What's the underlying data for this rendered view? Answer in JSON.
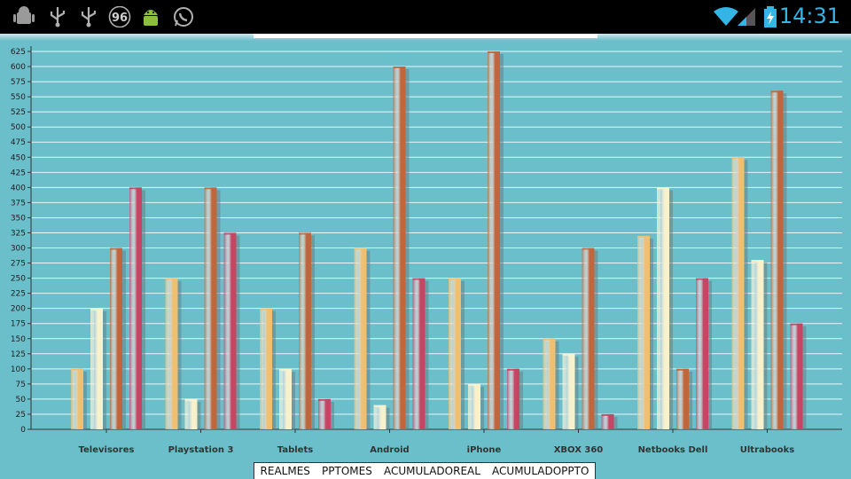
{
  "status_bar": {
    "clock": "14:31",
    "badge": "96",
    "icons": [
      "android-debug-icon",
      "usb-icon",
      "usb-icon",
      "badge-96-icon",
      "android-robot-icon",
      "whatsapp-icon",
      "wifi-icon",
      "signal-icon",
      "battery-charging-icon"
    ]
  },
  "chart_data": {
    "type": "bar",
    "categories": [
      "Televisores",
      "Playstation 3",
      "Tablets",
      "Android",
      "iPhone",
      "XBOX 360",
      "Netbooks Dell",
      "Ultrabooks"
    ],
    "series": [
      {
        "name": "REALMES",
        "color": "#f0c070",
        "values": [
          100,
          250,
          200,
          300,
          250,
          150,
          320,
          450
        ]
      },
      {
        "name": "PPTOMES",
        "color": "#f8f2cc",
        "values": [
          200,
          50,
          100,
          40,
          75,
          125,
          400,
          280
        ]
      },
      {
        "name": "ACUMULADOREAL",
        "color": "#c0663c",
        "values": [
          300,
          400,
          325,
          600,
          625,
          300,
          100,
          560
        ]
      },
      {
        "name": "ACUMULADOPPTO",
        "color": "#c44664",
        "values": [
          400,
          325,
          50,
          250,
          100,
          25,
          250,
          175
        ]
      }
    ],
    "ylim": [
      0,
      640
    ],
    "yticks": [
      "0",
      "25",
      "50",
      "75",
      "100",
      "125",
      "150",
      "175",
      "200",
      "225",
      "250",
      "275",
      "300",
      "325",
      "350",
      "375",
      "400",
      "425",
      "450",
      "475",
      "500",
      "525",
      "550",
      "575",
      "600",
      "625"
    ],
    "grid": true,
    "legend_position": "bottom"
  }
}
